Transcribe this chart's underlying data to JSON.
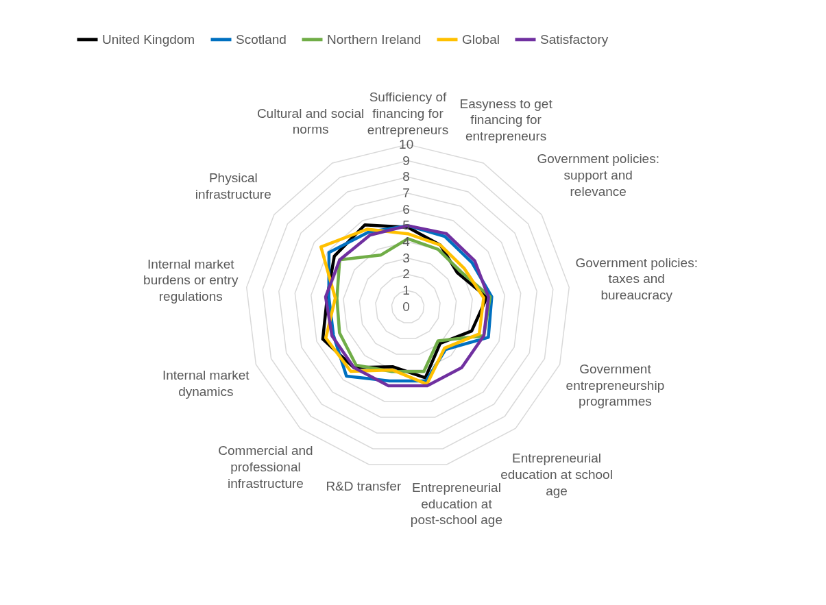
{
  "chart_data": {
    "type": "radar",
    "categories": [
      "Sufficiency of financing for entrepreneurs",
      "Easyness to get financing for entrepreneurs",
      "Government policies: support and relevance",
      "Government policies: taxes and bureaucracy",
      "Government entrepreneurship programmes",
      "Entrepreneurial education at school age",
      "Entrepreneurial education at post-school age",
      "R&D transfer",
      "Commercial and professional infrastructure",
      "Internal market dynamics",
      "Internal market burdens or entry regulations",
      "Physical infrastructure",
      "Cultural and social norms"
    ],
    "series": [
      {
        "name": "United Kingdom",
        "color": "#000000",
        "values": [
          4.9,
          4.3,
          3.7,
          4.9,
          4.2,
          3.0,
          4.5,
          3.8,
          5.0,
          5.6,
          5.0,
          5.5,
          5.7
        ]
      },
      {
        "name": "Scotland",
        "color": "#0070c0",
        "values": [
          5.0,
          4.9,
          4.8,
          5.2,
          5.3,
          3.5,
          4.7,
          4.7,
          5.7,
          4.9,
          4.9,
          5.9,
          5.2
        ]
      },
      {
        "name": "Northern Ireland",
        "color": "#70ad47",
        "values": [
          4.2,
          4.0,
          3.9,
          5.1,
          5.0,
          2.8,
          4.1,
          4.1,
          4.8,
          4.5,
          4.4,
          5.1,
          3.6
        ]
      },
      {
        "name": "Global",
        "color": "#ffc000",
        "values": [
          4.5,
          4.3,
          4.2,
          4.7,
          4.7,
          3.4,
          4.9,
          4.0,
          5.3,
          5.4,
          4.5,
          6.5,
          5.4
        ]
      },
      {
        "name": "Satisfactory",
        "color": "#7030a0",
        "values": [
          5.0,
          5.1,
          5.0,
          5.0,
          5.0,
          5.0,
          5.0,
          5.0,
          5.0,
          5.0,
          5.1,
          5.1,
          5.0
        ]
      }
    ],
    "ylim": [
      0,
      10
    ],
    "yticks": [
      0,
      1,
      2,
      3,
      4,
      5,
      6,
      7,
      8,
      9,
      10
    ],
    "grid": true,
    "legend": "top"
  }
}
